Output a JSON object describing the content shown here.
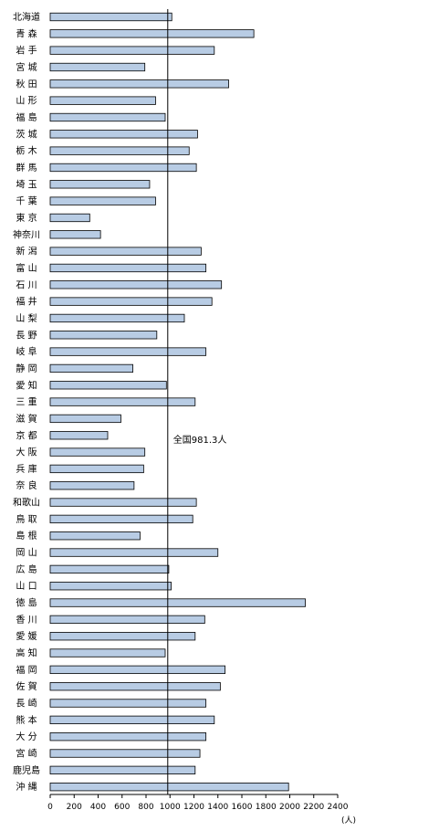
{
  "chart_data": {
    "type": "bar",
    "orientation": "horizontal",
    "categories": [
      "北海道",
      "青 森",
      "岩 手",
      "宮 城",
      "秋 田",
      "山 形",
      "福 島",
      "茨 城",
      "栃 木",
      "群 馬",
      "埼 玉",
      "千 葉",
      "東 京",
      "神奈川",
      "新 潟",
      "富 山",
      "石 川",
      "福 井",
      "山 梨",
      "長 野",
      "岐 阜",
      "静 岡",
      "愛 知",
      "三 重",
      "滋 賀",
      "京 都",
      "大 阪",
      "兵 庫",
      "奈 良",
      "和歌山",
      "鳥 取",
      "島 根",
      "岡 山",
      "広 島",
      "山 口",
      "徳 島",
      "香 川",
      "愛 媛",
      "高 知",
      "福 岡",
      "佐 賀",
      "長 崎",
      "熊 本",
      "大 分",
      "宮 崎",
      "鹿児島",
      "沖 縄"
    ],
    "values": [
      1015,
      1700,
      1370,
      790,
      1490,
      880,
      960,
      1230,
      1160,
      1220,
      830,
      880,
      330,
      420,
      1260,
      1300,
      1430,
      1350,
      1120,
      890,
      1300,
      690,
      970,
      1210,
      590,
      480,
      790,
      780,
      700,
      1220,
      1190,
      750,
      1400,
      990,
      1010,
      2130,
      1290,
      1210,
      960,
      1460,
      1420,
      1300,
      1370,
      1300,
      1250,
      1210,
      1990
    ],
    "xlim": [
      0,
      2400
    ],
    "xticks": [
      "0",
      "200",
      "400",
      "600",
      "800",
      "1000",
      "1200",
      "1400",
      "1600",
      "1800",
      "2000",
      "2200",
      "2400"
    ],
    "xunit": "(人)",
    "reference_line": {
      "value": 981.3,
      "label": "全国981.3人"
    },
    "bar_color": "#b8cce4",
    "bar_edge_color": "#000000"
  }
}
